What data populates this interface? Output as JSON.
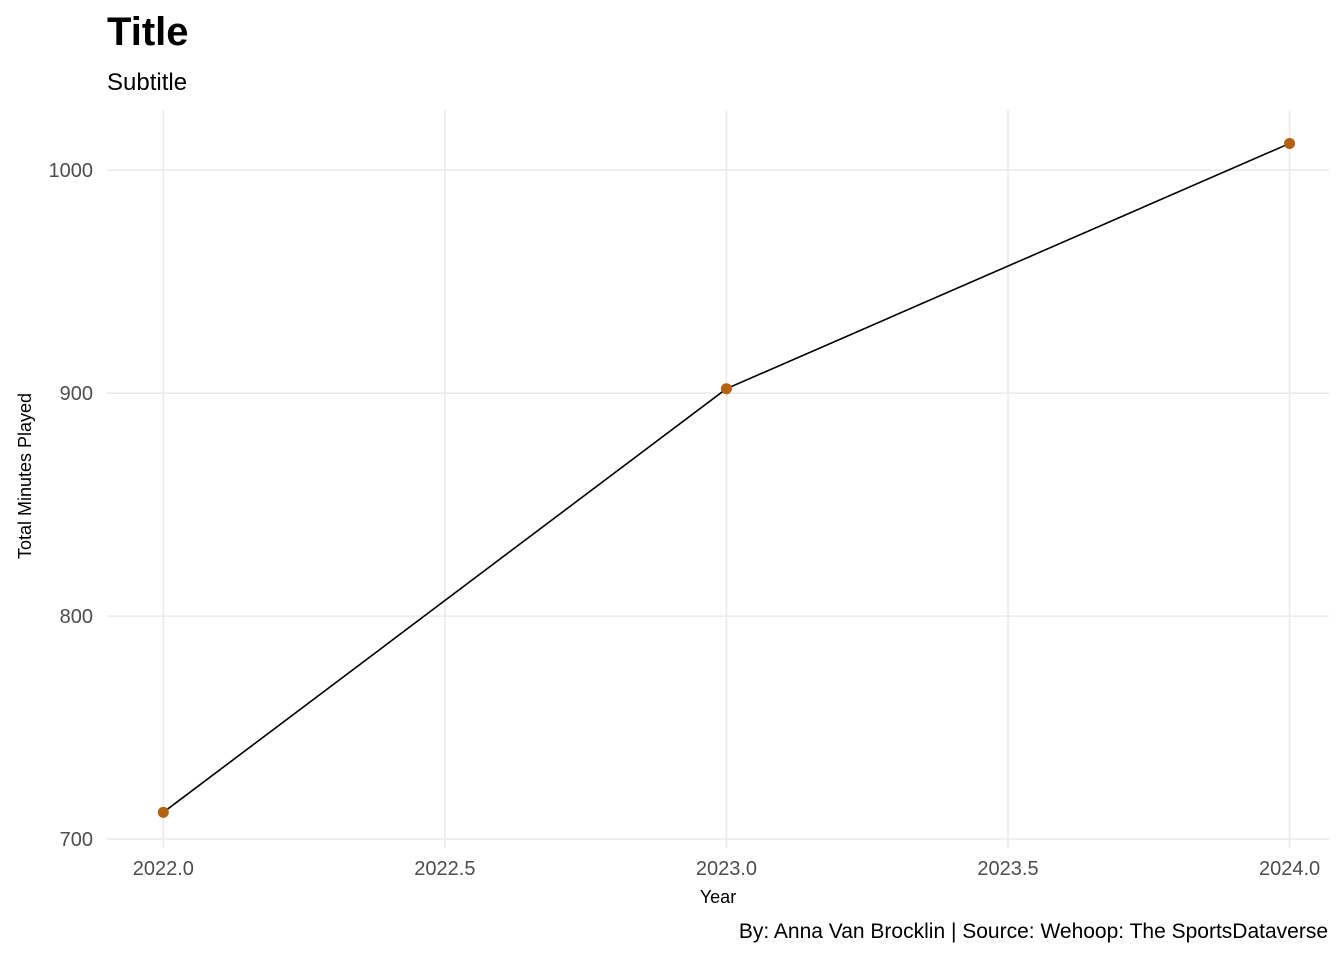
{
  "title": "Title",
  "subtitle": "Subtitle",
  "caption": "By: Anna Van Brocklin | Source: Wehoop: The SportsDataverse",
  "chart_data": {
    "type": "line",
    "title": "Title",
    "subtitle": "Subtitle",
    "xlabel": "Year",
    "ylabel": "Total Minutes Played",
    "x": [
      2022,
      2023,
      2024
    ],
    "series": [
      {
        "values": [
          712,
          902,
          1012
        ]
      }
    ],
    "xlim": [
      2021.9,
      2024.07
    ],
    "ylim": [
      696,
      1027
    ],
    "xticks": [
      2022.0,
      2022.5,
      2023.0,
      2023.5,
      2024.0
    ],
    "xtick_labels": [
      "2022.0",
      "2022.5",
      "2023.0",
      "2023.5",
      "2024.0"
    ],
    "yticks": [
      700,
      800,
      900,
      1000
    ],
    "ytick_labels": [
      "700",
      "800",
      "900",
      "1000"
    ],
    "grid": true,
    "line_color": "#000000",
    "point_color": "#b5620f",
    "grid_color": "#ebebeb"
  }
}
